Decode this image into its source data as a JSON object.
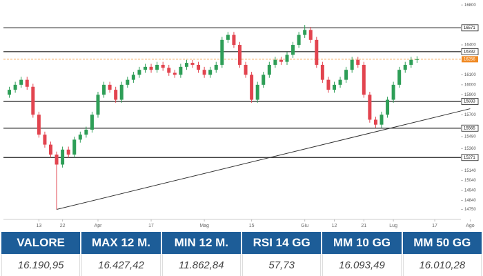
{
  "chart_data": {
    "type": "candlestick",
    "open": [
      15900,
      15950,
      16000,
      16050,
      15980,
      15700,
      15500,
      15400,
      15300,
      15200,
      15350,
      15300,
      15450,
      15500,
      15550,
      15700,
      15900,
      16000,
      15950,
      15850,
      16000,
      16050,
      16100,
      16150,
      16180,
      16150,
      16200,
      16170,
      16120,
      16100,
      16180,
      16220,
      16200,
      16150,
      16100,
      16150,
      16200,
      16450,
      16500,
      16400,
      16200,
      16100,
      15850,
      16000,
      16100,
      16200,
      16250,
      16230,
      16300,
      16400,
      16500,
      16550,
      16450,
      16200,
      16050,
      15950,
      16000,
      16050,
      16150,
      16250,
      16200,
      15900,
      15650,
      15600,
      15700,
      15850,
      16000,
      16150,
      16200,
      16250
    ],
    "high": [
      15980,
      16030,
      16080,
      16080,
      16010,
      15730,
      15530,
      15430,
      15330,
      15380,
      15380,
      15480,
      15530,
      15580,
      15730,
      15930,
      16030,
      16030,
      15980,
      16030,
      16080,
      16130,
      16180,
      16210,
      16210,
      16230,
      16230,
      16200,
      16150,
      16210,
      16250,
      16250,
      16230,
      16180,
      16180,
      16230,
      16480,
      16530,
      16530,
      16430,
      16230,
      16130,
      16030,
      16130,
      16230,
      16280,
      16280,
      16330,
      16430,
      16530,
      16600,
      16580,
      16480,
      16230,
      16080,
      16030,
      16080,
      16180,
      16280,
      16280,
      16230,
      15930,
      15680,
      15730,
      15880,
      16030,
      16180,
      16230,
      16280,
      16286
    ],
    "low": [
      15870,
      15920,
      15970,
      15950,
      15670,
      15470,
      15370,
      15270,
      14750,
      15170,
      15270,
      15270,
      15420,
      15470,
      15520,
      15670,
      15870,
      15920,
      15820,
      15820,
      15970,
      16020,
      16070,
      16120,
      16120,
      16120,
      16140,
      16090,
      16070,
      16070,
      16150,
      16170,
      16120,
      16070,
      16070,
      16120,
      16170,
      16420,
      16370,
      16170,
      16070,
      15820,
      15820,
      15970,
      16070,
      16170,
      16200,
      16200,
      16270,
      16370,
      16470,
      16420,
      16170,
      16020,
      15920,
      15920,
      15970,
      16020,
      16120,
      16170,
      15870,
      15620,
      15570,
      15570,
      15670,
      15820,
      15970,
      16120,
      16170,
      16220
    ],
    "close": [
      15950,
      16000,
      16050,
      15980,
      15700,
      15500,
      15400,
      15300,
      15200,
      15350,
      15300,
      15450,
      15500,
      15550,
      15700,
      15900,
      16000,
      15950,
      15850,
      16000,
      16050,
      16100,
      16150,
      16180,
      16150,
      16200,
      16170,
      16120,
      16100,
      16180,
      16220,
      16200,
      16150,
      16100,
      16150,
      16200,
      16450,
      16500,
      16400,
      16200,
      16100,
      15850,
      16000,
      16100,
      16200,
      16250,
      16230,
      16300,
      16400,
      16500,
      16550,
      16450,
      16200,
      16050,
      15950,
      16000,
      16050,
      16150,
      16250,
      16200,
      15900,
      15650,
      15600,
      15700,
      15850,
      16000,
      16150,
      16200,
      16250,
      16256
    ],
    "up_color": "#2e9e57",
    "down_color": "#e2444f",
    "xlim": [
      -1,
      79
    ],
    "xticks": [
      {
        "value": 5,
        "label": "13"
      },
      {
        "value": 9,
        "label": "22"
      },
      {
        "value": 15,
        "label": "Apr"
      },
      {
        "value": 24,
        "label": "17"
      },
      {
        "value": 33,
        "label": "Mag"
      },
      {
        "value": 41,
        "label": "15"
      },
      {
        "value": 50,
        "label": "Giu"
      },
      {
        "value": 55,
        "label": "12"
      },
      {
        "value": 60,
        "label": "21"
      },
      {
        "value": 65,
        "label": "Lug"
      },
      {
        "value": 72,
        "label": "17"
      },
      {
        "value": 78,
        "label": "Ago"
      }
    ],
    "ylim": [
      14650,
      16850
    ],
    "yticks": [
      14750,
      14840,
      14940,
      15040,
      15140,
      15360,
      15480,
      15700,
      15900,
      16000,
      16100,
      16400,
      16800
    ],
    "levels": [
      16571,
      16332,
      15833,
      15565,
      15271
    ],
    "current_price": 16256,
    "current_color": "#f08a24",
    "trendline": {
      "x": [
        8,
        78
      ],
      "y": [
        14750,
        15760
      ]
    }
  },
  "table": {
    "headers": [
      "VALORE",
      "MAX 12 M.",
      "MIN 12 M.",
      "RSI 14 GG",
      "MM 10 GG",
      "MM 50 GG"
    ],
    "rows": [
      [
        "16.190,95",
        "16.427,42",
        "11.862,84",
        "57,73",
        "16.093,49",
        "16.010,28"
      ]
    ]
  }
}
